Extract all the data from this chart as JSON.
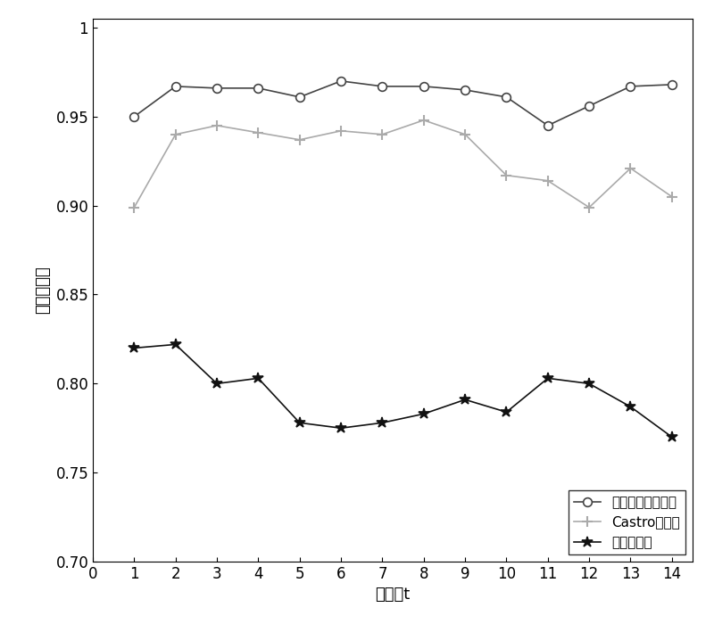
{
  "x": [
    1,
    2,
    3,
    4,
    5,
    6,
    7,
    8,
    9,
    10,
    11,
    12,
    13,
    14
  ],
  "series1_label": "时空转移概率模型",
  "series1_values": [
    0.95,
    0.967,
    0.966,
    0.966,
    0.961,
    0.97,
    0.967,
    0.967,
    0.965,
    0.961,
    0.945,
    0.956,
    0.967,
    0.968
  ],
  "series1_color": "#444444",
  "series1_marker": "o",
  "series2_label": "Castro的模型",
  "series2_values": [
    0.899,
    0.94,
    0.945,
    0.941,
    0.937,
    0.942,
    0.94,
    0.948,
    0.94,
    0.917,
    0.914,
    0.899,
    0.921,
    0.905
  ],
  "series2_color": "#aaaaaa",
  "series2_marker": "+",
  "series3_label": "移动平均法",
  "series3_values": [
    0.82,
    0.822,
    0.8,
    0.803,
    0.778,
    0.775,
    0.778,
    0.783,
    0.791,
    0.784,
    0.803,
    0.8,
    0.787,
    0.77
  ],
  "series3_color": "#111111",
  "series3_marker": "*",
  "xlabel": "时间段t",
  "ylabel": "预测准确率",
  "xlim": [
    0,
    14.5
  ],
  "ylim": [
    0.7,
    1.005
  ],
  "yticks": [
    0.7,
    0.75,
    0.8,
    0.85,
    0.9,
    0.95,
    1.0
  ],
  "xticks": [
    0,
    1,
    2,
    3,
    4,
    5,
    6,
    7,
    8,
    9,
    10,
    11,
    12,
    13,
    14
  ],
  "legend_loc": "lower right",
  "figsize": [
    8.0,
    7.0
  ],
  "dpi": 100
}
